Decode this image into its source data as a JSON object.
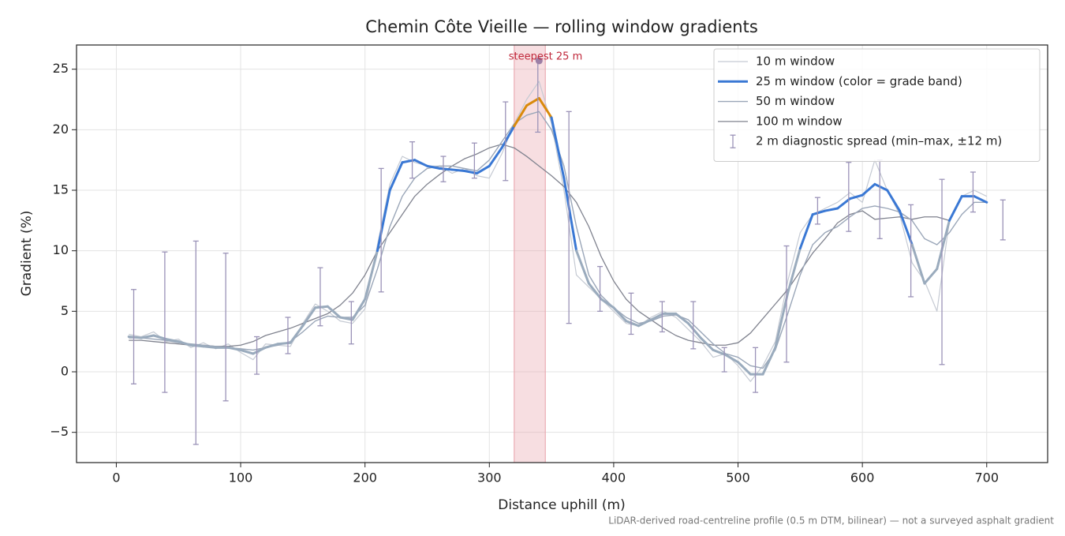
{
  "chart_data": {
    "type": "line",
    "title": "Chemin Côte Vieille — rolling window gradients",
    "xlabel": "Distance uphill (m)",
    "ylabel": "Gradient (%)",
    "note": "LiDAR-derived road-centreline profile (0.5 m DTM, bilinear) — not a surveyed asphalt gradient",
    "xlim": [
      -32,
      749
    ],
    "ylim": [
      -7.5,
      27.0
    ],
    "xticks": [
      0,
      100,
      200,
      300,
      400,
      500,
      600,
      700
    ],
    "yticks": [
      {
        "value": -5,
        "label": "−5"
      },
      0,
      5,
      10,
      15,
      20,
      25
    ],
    "grid": true,
    "legend": "upper right",
    "x": [
      10,
      20,
      30,
      40,
      50,
      60,
      70,
      80,
      90,
      100,
      110,
      120,
      130,
      140,
      150,
      160,
      170,
      180,
      190,
      200,
      210,
      220,
      230,
      240,
      250,
      260,
      270,
      280,
      290,
      300,
      310,
      320,
      330,
      340,
      350,
      360,
      370,
      380,
      390,
      400,
      410,
      420,
      430,
      440,
      450,
      460,
      470,
      480,
      490,
      500,
      510,
      520,
      530,
      540,
      550,
      560,
      570,
      580,
      590,
      600,
      610,
      620,
      630,
      640,
      650,
      660,
      670,
      680,
      690,
      700
    ],
    "series": [
      {
        "name": "10 m window",
        "color": "#c5cad3",
        "width": 1.2,
        "values": [
          3.1,
          2.9,
          3.3,
          2.5,
          2.7,
          2.0,
          2.4,
          1.9,
          2.3,
          1.6,
          1.0,
          2.3,
          2.2,
          2.1,
          4.0,
          5.6,
          5.0,
          4.2,
          4.0,
          5.2,
          10.5,
          15.5,
          17.8,
          17.3,
          17.0,
          17.0,
          16.4,
          16.8,
          16.2,
          16.0,
          18.0,
          20.5,
          22.5,
          24.0,
          20.5,
          15.0,
          8.0,
          7.0,
          6.0,
          5.0,
          4.0,
          3.8,
          4.5,
          5.0,
          4.5,
          3.5,
          2.5,
          1.2,
          1.5,
          0.5,
          -0.8,
          0.5,
          2.5,
          7.5,
          11.5,
          13.0,
          13.5,
          14.0,
          14.8,
          14.0,
          17.5,
          15.0,
          13.0,
          9.0,
          7.5,
          5.0,
          12.5,
          14.5,
          15.0,
          14.5
        ]
      },
      {
        "name": "25 m window (color = grade band)",
        "color": "#3a78d4",
        "width": 3,
        "bands": [
          {
            "min": 20,
            "color": "#d98a0c"
          },
          {
            "min": 10,
            "color": "#3a78d4"
          },
          {
            "min": -100,
            "color": "#9aabbd"
          }
        ],
        "values": [
          2.9,
          2.8,
          3.0,
          2.7,
          2.5,
          2.2,
          2.1,
          2.0,
          2.0,
          1.8,
          1.5,
          2.0,
          2.3,
          2.4,
          3.8,
          5.3,
          5.4,
          4.5,
          4.3,
          6.0,
          10.0,
          15.0,
          17.3,
          17.5,
          17.0,
          16.8,
          16.7,
          16.6,
          16.4,
          17.0,
          18.5,
          20.3,
          22.0,
          22.6,
          21.0,
          16.0,
          10.0,
          7.3,
          6.0,
          5.3,
          4.2,
          3.8,
          4.3,
          4.8,
          4.8,
          4.0,
          2.8,
          1.8,
          1.4,
          0.8,
          -0.2,
          -0.2,
          2.0,
          6.5,
          10.2,
          13.0,
          13.3,
          13.5,
          14.3,
          14.6,
          15.5,
          15.0,
          13.3,
          10.5,
          7.3,
          8.5,
          12.5,
          14.5,
          14.5,
          14.0
        ]
      },
      {
        "name": "50 m window",
        "color": "#9aa6b8",
        "width": 1.4,
        "values": [
          2.8,
          2.8,
          2.7,
          2.6,
          2.4,
          2.3,
          2.2,
          2.1,
          2.0,
          1.9,
          1.8,
          2.0,
          2.2,
          2.5,
          3.3,
          4.2,
          4.6,
          4.5,
          4.5,
          5.5,
          8.5,
          12.0,
          14.5,
          16.0,
          16.8,
          17.0,
          17.0,
          16.8,
          16.6,
          17.5,
          19.0,
          20.5,
          21.2,
          21.5,
          20.0,
          17.0,
          12.0,
          8.0,
          6.3,
          5.3,
          4.5,
          4.0,
          4.2,
          4.6,
          4.7,
          4.3,
          3.3,
          2.3,
          1.5,
          1.2,
          0.5,
          0.3,
          1.8,
          4.8,
          8.0,
          10.5,
          11.5,
          12.0,
          12.8,
          13.5,
          13.7,
          13.5,
          13.2,
          12.5,
          11.0,
          10.5,
          11.5,
          13.0,
          14.0,
          14.0
        ]
      },
      {
        "name": "100 m window",
        "color": "#80838f",
        "width": 1.3,
        "values": [
          2.6,
          2.6,
          2.5,
          2.4,
          2.3,
          2.2,
          2.2,
          2.1,
          2.1,
          2.2,
          2.5,
          3.0,
          3.3,
          3.6,
          4.0,
          4.4,
          4.8,
          5.5,
          6.5,
          8.0,
          10.0,
          11.5,
          13.0,
          14.5,
          15.5,
          16.3,
          17.0,
          17.6,
          18.0,
          18.5,
          18.8,
          18.5,
          17.8,
          17.0,
          16.2,
          15.3,
          14.0,
          12.0,
          9.5,
          7.5,
          6.0,
          5.0,
          4.3,
          3.6,
          3.0,
          2.6,
          2.4,
          2.2,
          2.2,
          2.4,
          3.2,
          4.4,
          5.6,
          6.8,
          8.3,
          9.8,
          11.0,
          12.3,
          13.0,
          13.3,
          12.6,
          12.7,
          12.8,
          12.6,
          12.8,
          12.8,
          12.5,
          null,
          null,
          null
        ]
      }
    ],
    "errorbars": {
      "name": "2 m diagnostic spread (min–max, ±12 m)",
      "color": "#9b93b8",
      "x": [
        14,
        39,
        64,
        88,
        113,
        138,
        164,
        189,
        213,
        238,
        263,
        288,
        313,
        339,
        364,
        389,
        414,
        439,
        464,
        489,
        514,
        539,
        564,
        589,
        614,
        639,
        664,
        689,
        713
      ],
      "low": [
        -1.0,
        -1.7,
        -6.0,
        -2.4,
        -0.2,
        1.5,
        3.8,
        2.3,
        6.6,
        16.0,
        15.7,
        16.0,
        15.8,
        19.8,
        4.0,
        5.0,
        3.1,
        3.3,
        1.9,
        0.0,
        -1.7,
        0.8,
        12.2,
        11.6,
        11.0,
        6.2,
        0.6,
        13.2,
        10.9
      ],
      "high": [
        6.8,
        9.9,
        10.8,
        9.8,
        2.9,
        4.5,
        8.6,
        5.8,
        16.8,
        19.0,
        17.8,
        18.9,
        22.3,
        25.8,
        21.5,
        8.7,
        6.5,
        5.8,
        5.8,
        2.0,
        2.0,
        10.4,
        14.4,
        17.3,
        17.5,
        13.8,
        15.9,
        16.5,
        14.2
      ]
    },
    "highlight": {
      "start": 320,
      "end": 345,
      "color": "#e8a0a8",
      "label": "steepest 25 m",
      "label_color": "#c0283b",
      "peak_x": 340,
      "peak_y": 25.7
    }
  }
}
